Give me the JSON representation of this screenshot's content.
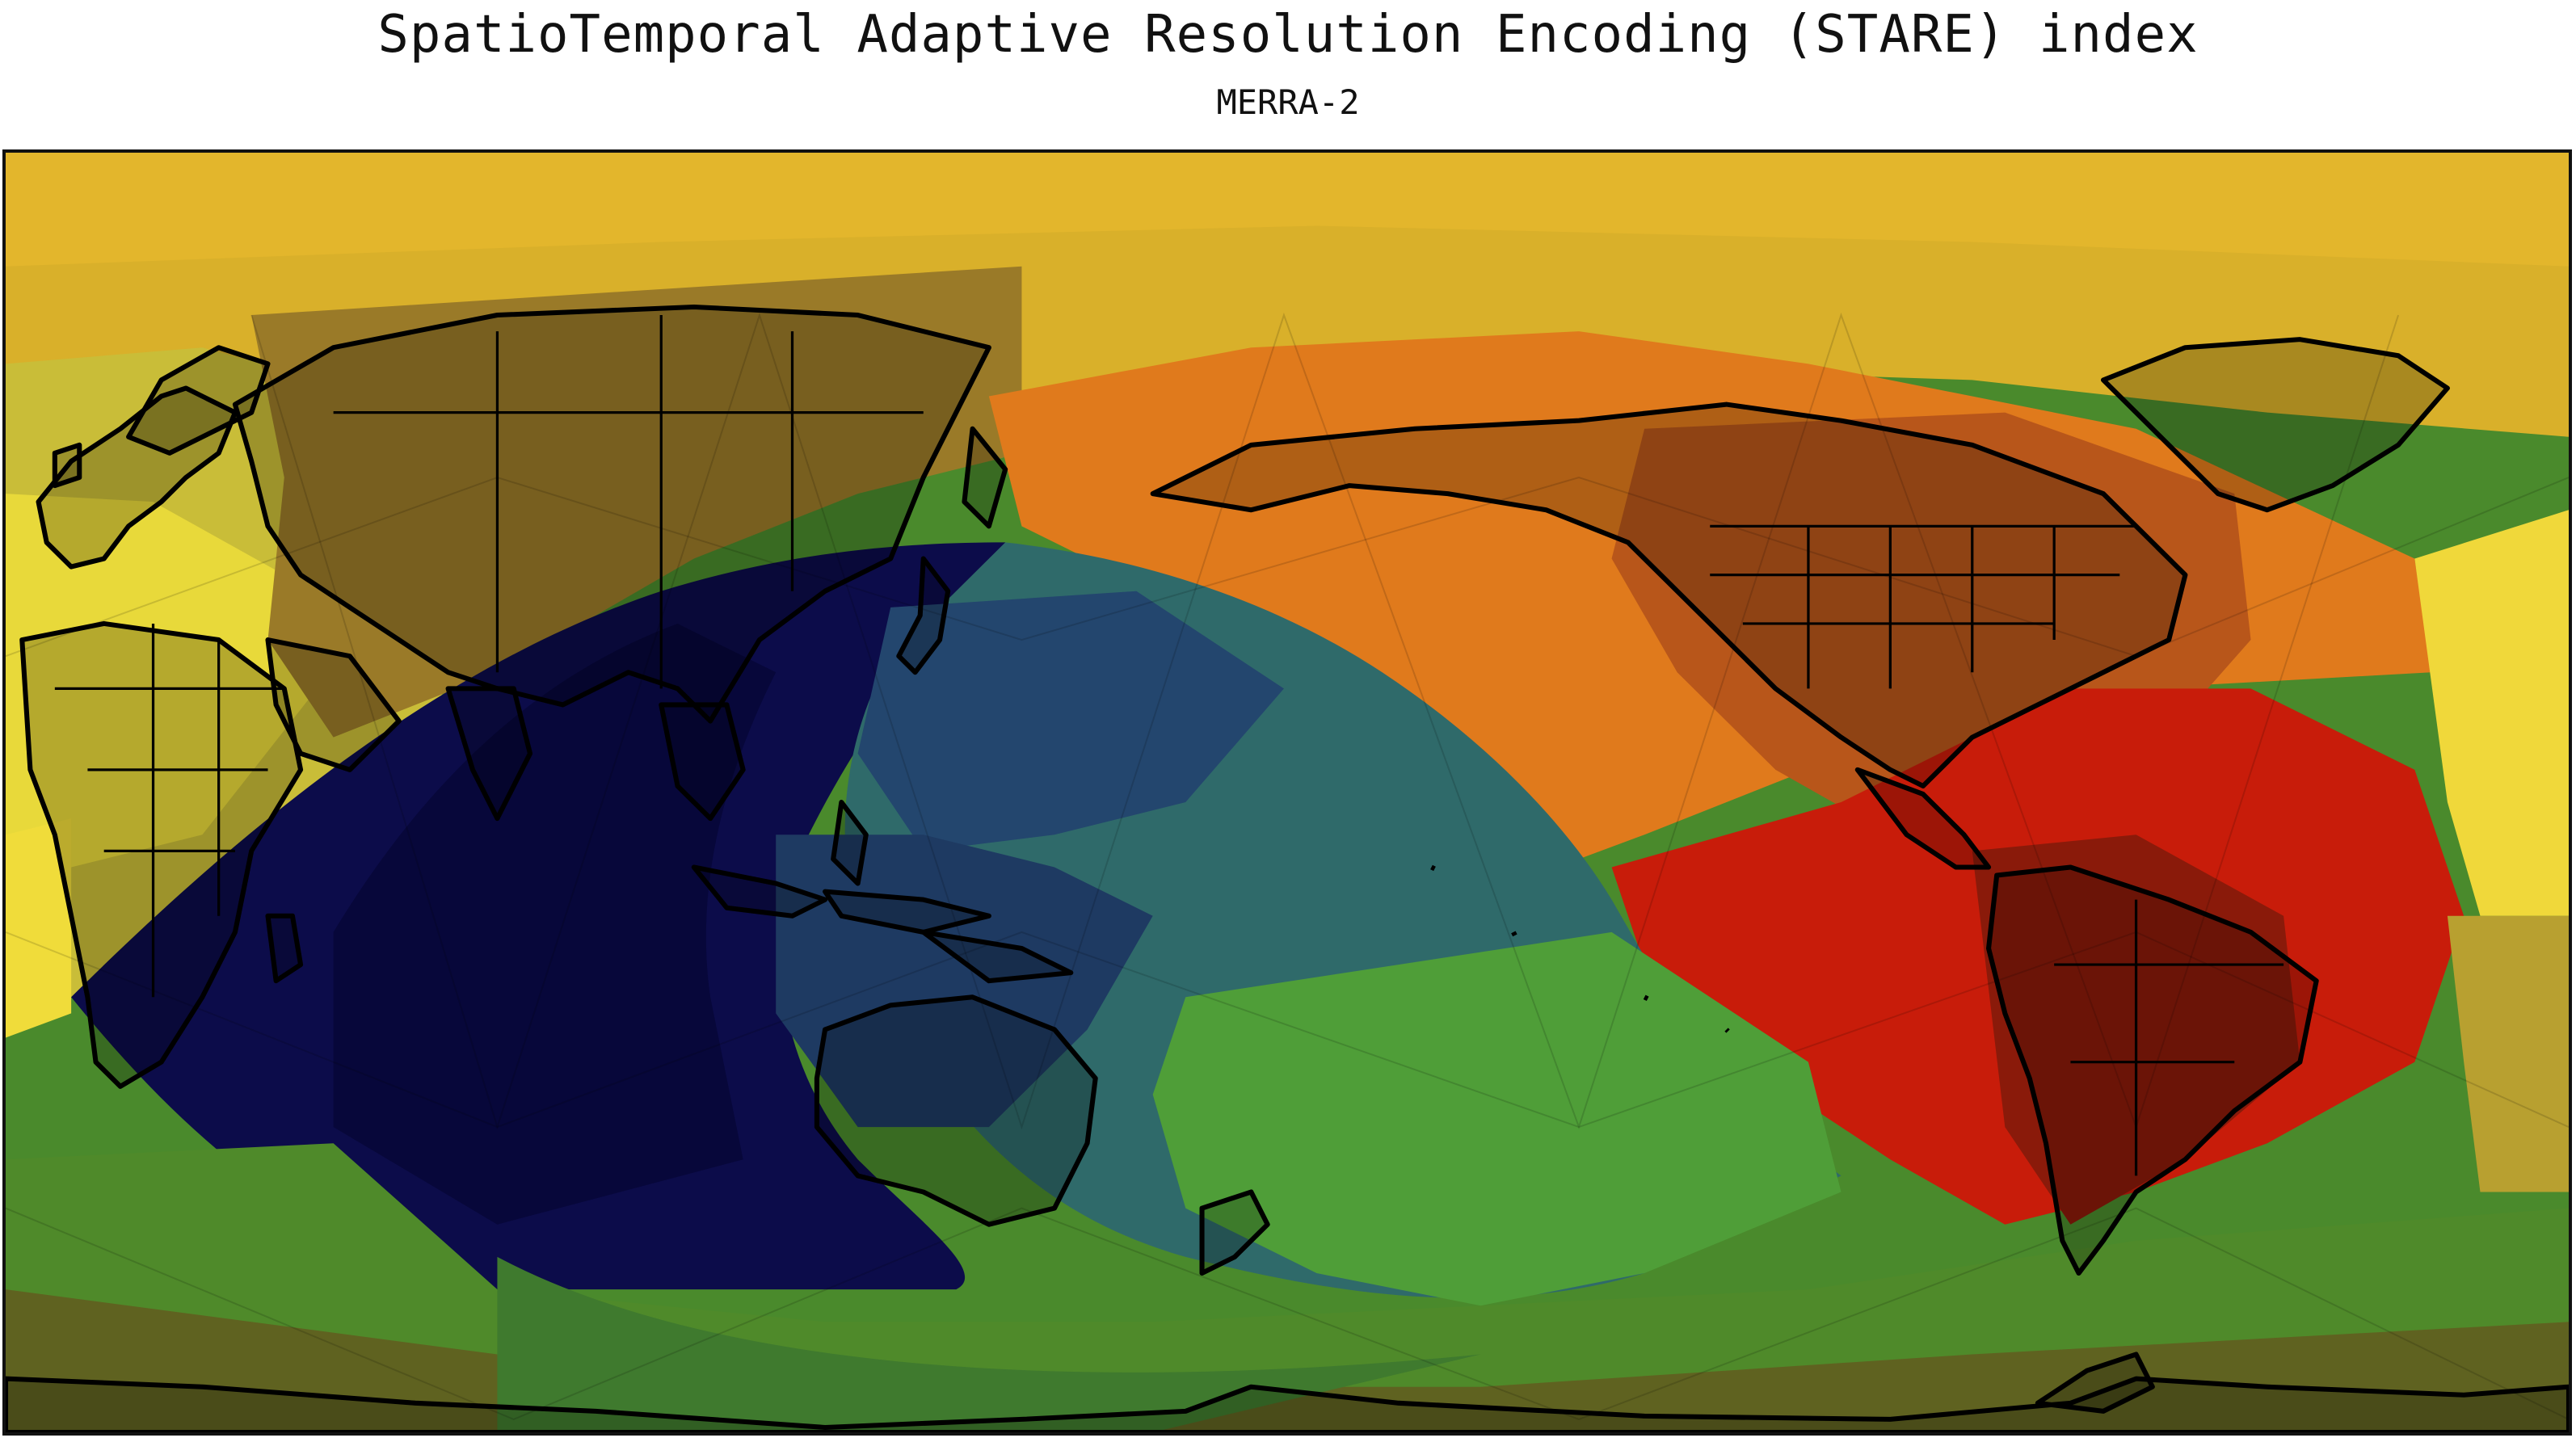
{
  "figure": {
    "title": "SpatioTemporal Adaptive Resolution Encoding (STARE) index",
    "subtitle": "MERRA-2"
  },
  "map": {
    "projection": "plate-carree",
    "central_longitude": 150,
    "extent_lon": [
      -30,
      330
    ],
    "extent_lat": [
      -90,
      90
    ],
    "coastlines": true,
    "country_borders": true,
    "colormap": [
      "#1a1a1a",
      "#0a0a3a",
      "#1f3f6f",
      "#4a8a6a",
      "#4a9a3a",
      "#d9b02a",
      "#f2e23c",
      "#e87a1a",
      "#d01a08",
      "#7a1508"
    ],
    "regions": [
      {
        "name": "north-cap",
        "color": "#d9b02a"
      },
      {
        "name": "north-pacific-orange",
        "color": "#e07a1c"
      },
      {
        "name": "south-america-red",
        "color": "#c81c0a"
      },
      {
        "name": "west-pacific-navy",
        "color": "#0c0c4a"
      },
      {
        "name": "central-pacific-teal",
        "color": "#2f6a6a"
      },
      {
        "name": "south-green",
        "color": "#4f9e38"
      },
      {
        "name": "africa-yellow",
        "color": "#f0dc3a"
      },
      {
        "name": "south-polar-olive",
        "color": "#5f6220"
      }
    ]
  }
}
